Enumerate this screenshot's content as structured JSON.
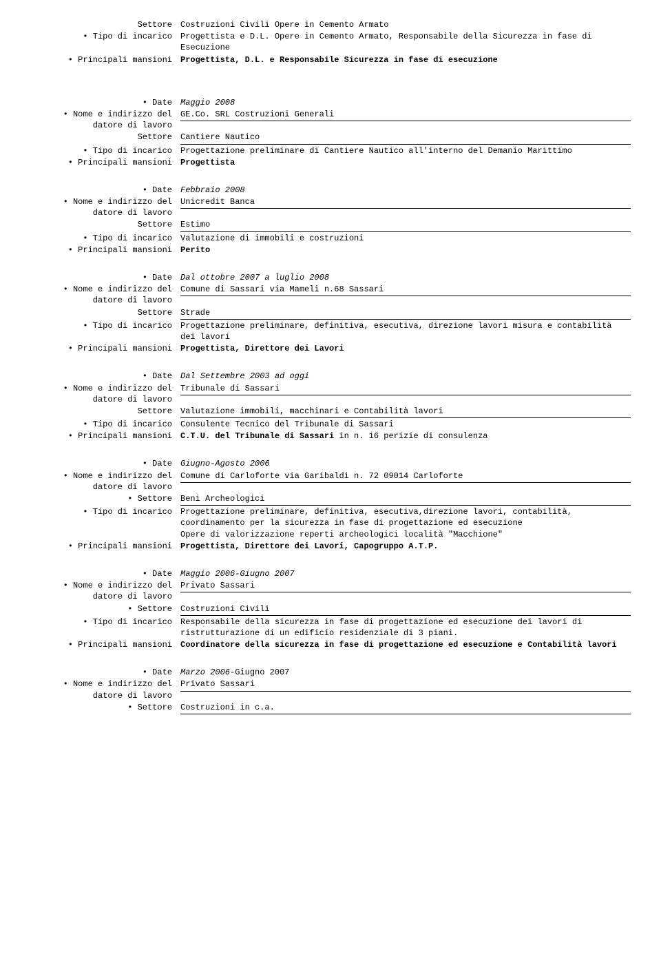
{
  "labels": {
    "settore": "Settore",
    "tipo": "• Tipo di incarico",
    "mansioni": "• Principali mansioni",
    "date": "• Date",
    "nome": "• Nome e indirizzo del datore di lavoro",
    "settoreBullet": "• Settore"
  },
  "b0": {
    "settore": "Costruzioni Civili Opere in Cemento Armato",
    "tipo": "Progettista e D.L. Opere in Cemento Armato, Responsabile della Sicurezza in fase di Esecuzione",
    "mansioni": "Progettista, D.L. e Responsabile Sicurezza in fase di esecuzione"
  },
  "b1": {
    "date": "Maggio 2008",
    "nome": "GE.Co. SRL Costruzioni Generali",
    "settore": "Cantiere Nautico",
    "tipo": "Progettazione preliminare di Cantiere Nautico all'interno del Demanio Marittimo",
    "mansioni": "Progettista"
  },
  "b2": {
    "date": "Febbraio 2008",
    "nome": "Unicredit Banca",
    "settore": "Estimo",
    "tipo": "Valutazione di immobili e costruzioni",
    "mansioni": "Perito"
  },
  "b3": {
    "date": "Dal ottobre 2007 a luglio 2008",
    "nome": "Comune di Sassari via Mameli n.68 Sassari",
    "settore": "Strade",
    "tipo": "Progettazione preliminare, definitiva, esecutiva, direzione lavori misura e contabilità dei lavori",
    "mansioni": "Progettista, Direttore dei Lavori"
  },
  "b4": {
    "date": "Dal Settembre 2003 ad oggi",
    "nome": "Tribunale di Sassari",
    "settore": "Valutazione immobili, macchinari e Contabilità lavori",
    "tipo": "Consulente Tecnico del Tribunale di Sassari",
    "mansioniBold": "C.T.U. del Tribunale di Sassari",
    "mansioniRest": " in n. 16 perizie di consulenza"
  },
  "b5": {
    "date": "Giugno-Agosto 2006",
    "nome": "Comune di Carloforte  via Garibaldi n. 72 09014 Carloforte",
    "settore": "Beni Archeologici",
    "tipo": "Progettazione preliminare, definitiva, esecutiva,direzione lavori, contabilità, coordinamento per la sicurezza in fase di progettazione ed esecuzione\nOpere di valorizzazione reperti archeologici località \"Macchione\"",
    "mansioni": "Progettista, Direttore dei Lavori, Capogruppo A.T.P."
  },
  "b6": {
    "date": "Maggio 2006-Giugno 2007",
    "nome": "Privato Sassari",
    "settore": "Costruzioni Civili",
    "tipo": "Responsabile della sicurezza in fase di progettazione ed esecuzione dei lavori di ristrutturazione di un edificio residenziale di 3 piani.",
    "mansioni": "Coordinatore della sicurezza in fase di progettazione ed esecuzione e Contabilità lavori"
  },
  "b7": {
    "date": "Marzo 2006-Giugno 2007",
    "nome": "Privato Sassari",
    "settore": "Costruzioni in c.a."
  }
}
